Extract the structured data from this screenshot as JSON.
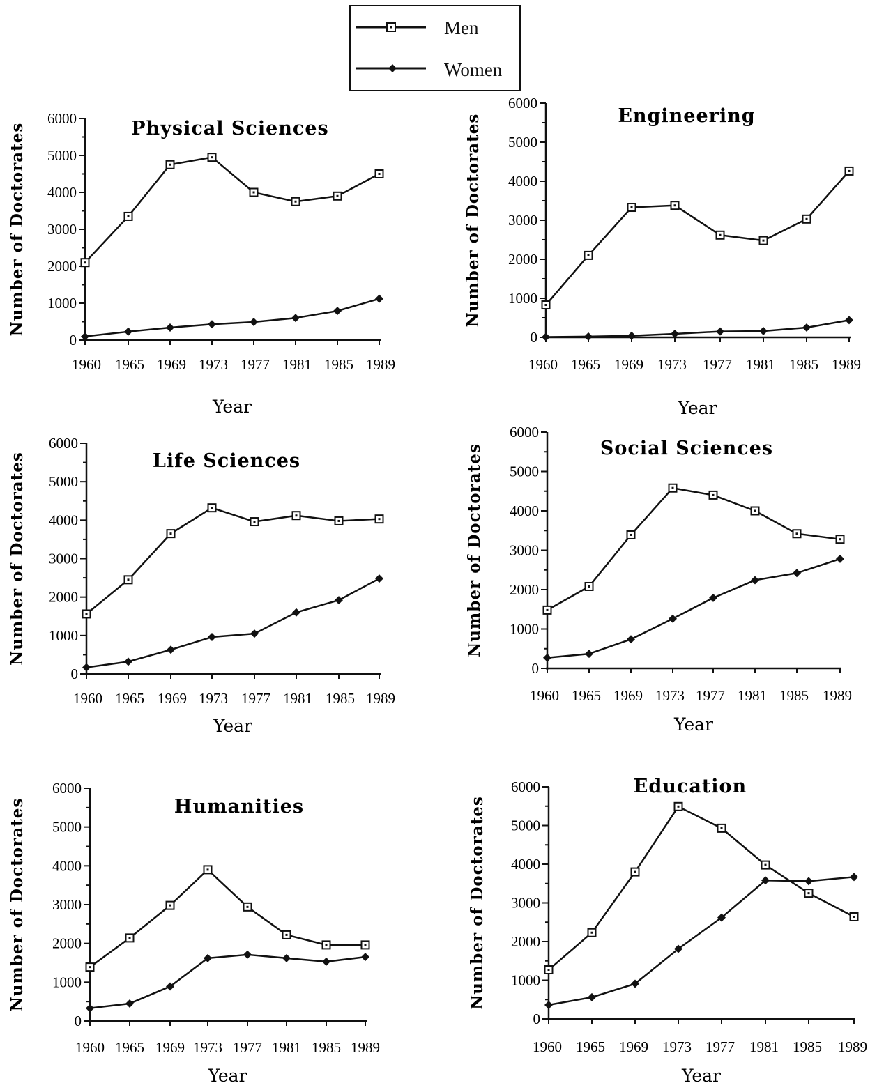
{
  "legend": {
    "men_label": "Men",
    "women_label": "Women"
  },
  "colors": {
    "ink": "#111111",
    "background": "#ffffff"
  },
  "chart_data": [
    {
      "type": "line",
      "title": "Physical Sciences",
      "xlabel": "Year",
      "ylabel": "Number of Doctorates",
      "x": [
        "1960",
        "1965",
        "1969",
        "1973",
        "1977",
        "1981",
        "1985",
        "1989"
      ],
      "ylim": [
        0,
        6000
      ],
      "yticks": [
        "0",
        "1000",
        "2000",
        "3000",
        "4000",
        "5000",
        "6000"
      ],
      "series": [
        {
          "name": "Men",
          "marker": "square",
          "values": [
            2100,
            3350,
            4750,
            4950,
            4000,
            3750,
            3900,
            4500
          ]
        },
        {
          "name": "Women",
          "marker": "diamond",
          "values": [
            100,
            230,
            340,
            430,
            490,
            600,
            790,
            1120
          ]
        }
      ]
    },
    {
      "type": "line",
      "title": "Engineering",
      "xlabel": "Year",
      "ylabel": "Number of Doctorates",
      "x": [
        "1960",
        "1965",
        "1969",
        "1973",
        "1977",
        "1981",
        "1985",
        "1989"
      ],
      "ylim": [
        0,
        6000
      ],
      "yticks": [
        "0",
        "1000",
        "2000",
        "3000",
        "4000",
        "5000",
        "6000"
      ],
      "series": [
        {
          "name": "Men",
          "marker": "square",
          "values": [
            830,
            2100,
            3330,
            3380,
            2620,
            2480,
            3030,
            4260
          ]
        },
        {
          "name": "Women",
          "marker": "diamond",
          "values": [
            10,
            20,
            40,
            90,
            150,
            160,
            250,
            440
          ]
        }
      ]
    },
    {
      "type": "line",
      "title": "Life Sciences",
      "xlabel": "Year",
      "ylabel": "Number of Doctorates",
      "x": [
        "1960",
        "1965",
        "1969",
        "1973",
        "1977",
        "1981",
        "1985",
        "1989"
      ],
      "ylim": [
        0,
        6000
      ],
      "yticks": [
        "0",
        "1000",
        "2000",
        "3000",
        "4000",
        "5000",
        "6000"
      ],
      "series": [
        {
          "name": "Men",
          "marker": "square",
          "values": [
            1560,
            2450,
            3650,
            4320,
            3960,
            4120,
            3980,
            4030
          ]
        },
        {
          "name": "Women",
          "marker": "diamond",
          "values": [
            170,
            320,
            630,
            960,
            1050,
            1600,
            1920,
            2480
          ]
        }
      ]
    },
    {
      "type": "line",
      "title": "Social Sciences",
      "xlabel": "Year",
      "ylabel": "Number of Doctorates",
      "x": [
        "1960",
        "1965",
        "1969",
        "1973",
        "1977",
        "1981",
        "1985",
        "1989"
      ],
      "ylim": [
        0,
        6000
      ],
      "yticks": [
        "0",
        "1000",
        "2000",
        "3000",
        "4000",
        "5000",
        "6000"
      ],
      "series": [
        {
          "name": "Men",
          "marker": "square",
          "values": [
            1480,
            2080,
            3390,
            4580,
            4400,
            4000,
            3420,
            3280
          ]
        },
        {
          "name": "Women",
          "marker": "diamond",
          "values": [
            270,
            370,
            740,
            1260,
            1790,
            2240,
            2420,
            2780
          ]
        }
      ]
    },
    {
      "type": "line",
      "title": "Humanities",
      "xlabel": "Year",
      "ylabel": "Number of Doctorates",
      "x": [
        "1960",
        "1965",
        "1969",
        "1973",
        "1977",
        "1981",
        "1985",
        "1989"
      ],
      "ylim": [
        0,
        6000
      ],
      "yticks": [
        "0",
        "1000",
        "2000",
        "3000",
        "4000",
        "5000",
        "6000"
      ],
      "series": [
        {
          "name": "Men",
          "marker": "square",
          "values": [
            1390,
            2140,
            2980,
            3900,
            2940,
            2220,
            1960,
            1960
          ]
        },
        {
          "name": "Women",
          "marker": "diamond",
          "values": [
            330,
            450,
            890,
            1620,
            1710,
            1620,
            1530,
            1650
          ]
        }
      ]
    },
    {
      "type": "line",
      "title": "Education",
      "xlabel": "Year",
      "ylabel": "Number of Doctorates",
      "x": [
        "1960",
        "1965",
        "1969",
        "1973",
        "1977",
        "1981",
        "1985",
        "1989"
      ],
      "ylim": [
        0,
        6000
      ],
      "yticks": [
        "0",
        "1000",
        "2000",
        "3000",
        "4000",
        "5000",
        "6000"
      ],
      "series": [
        {
          "name": "Men",
          "marker": "square",
          "values": [
            1270,
            2230,
            3800,
            5490,
            4930,
            3980,
            3250,
            2640
          ]
        },
        {
          "name": "Women",
          "marker": "diamond",
          "values": [
            360,
            560,
            910,
            1810,
            2620,
            3580,
            3560,
            3670
          ]
        }
      ]
    }
  ]
}
